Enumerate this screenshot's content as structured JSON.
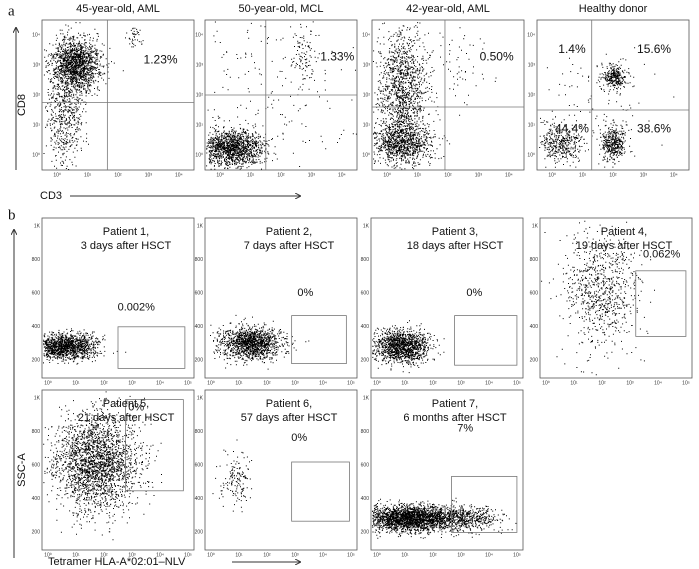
{
  "panel_a": {
    "label": "a",
    "y_label": "CD8",
    "x_label": "CD3",
    "ticks": [
      "10⁰",
      "10¹",
      "10²",
      "10³",
      "10⁴"
    ],
    "plots": [
      {
        "title": "45-year-old, AML",
        "percents": [
          "1.23%"
        ]
      },
      {
        "title": "50-year-old, MCL",
        "percents": [
          "1.33%"
        ]
      },
      {
        "title": "42-year-old, AML",
        "percents": [
          "0.50%"
        ]
      },
      {
        "title": "Healthy donor",
        "percents": [
          "1.4%",
          "15.6%",
          "44.4%",
          "38.6%"
        ]
      }
    ]
  },
  "panel_b": {
    "label": "b",
    "y_label": "SSC-A",
    "x_label": "Tetramer  HLA-A*02:01–NLV",
    "yticks": [
      "1K",
      "800",
      "600",
      "400",
      "200"
    ],
    "xticks": [
      "10⁰",
      "10¹",
      "10²",
      "10³",
      "10⁴",
      "10⁵"
    ],
    "plots": [
      {
        "title": [
          "Patient 1,",
          "3 days after HSCT"
        ],
        "percent": "0.002%"
      },
      {
        "title": [
          "Patient 2,",
          "7 days after HSCT"
        ],
        "percent": "0%"
      },
      {
        "title": [
          "Patient 3,",
          "18 days after HSCT"
        ],
        "percent": "0%"
      },
      {
        "title": [
          "Patient 4,",
          "19 days after HSCT"
        ],
        "percent": "0.062%"
      },
      {
        "title": [
          "Patient 5,",
          "21 days after HSCT"
        ],
        "percent": "0%"
      },
      {
        "title": [
          "Patient 6,",
          "57 days after HSCT"
        ],
        "percent": "0%"
      },
      {
        "title": [
          "Patient 7,",
          "6 months after HSCT"
        ],
        "percent": "7%"
      }
    ]
  }
}
